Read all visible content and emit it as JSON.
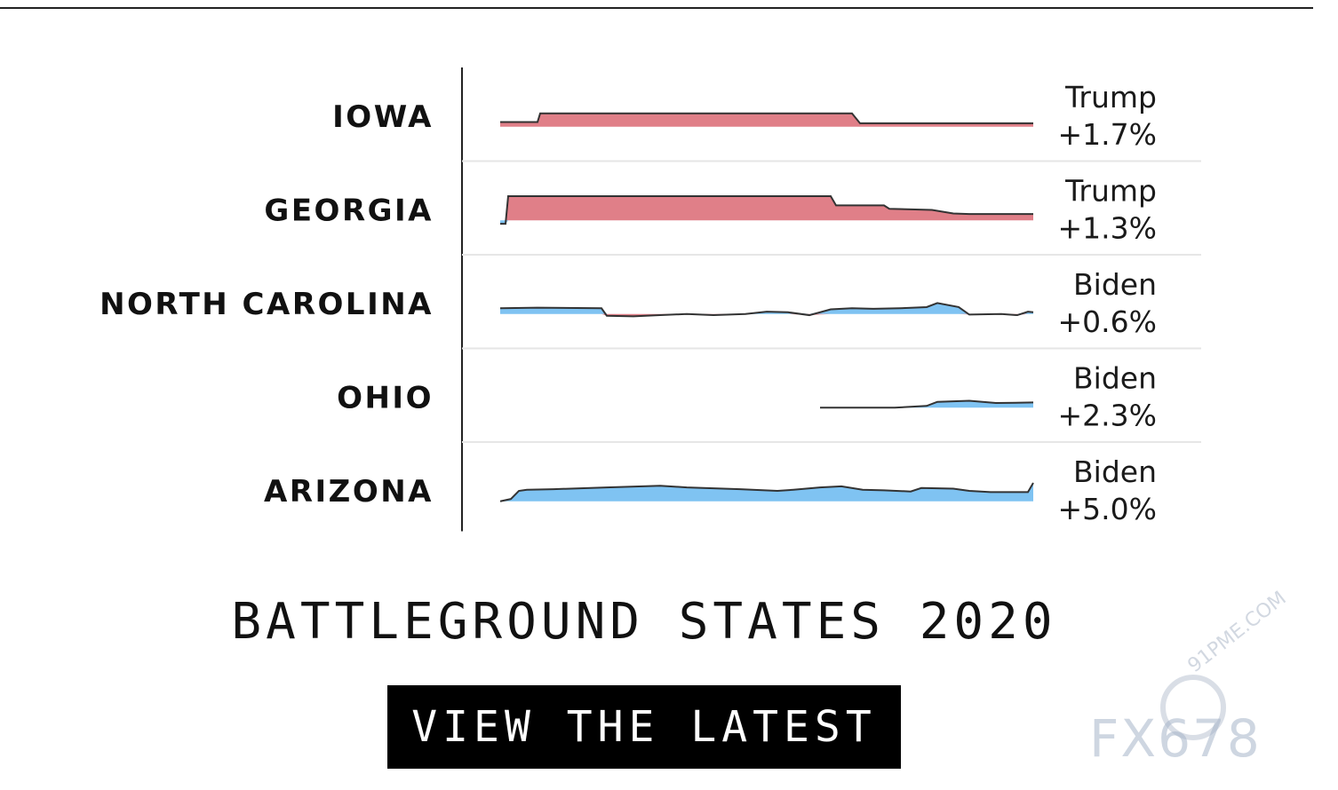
{
  "chart_data": {
    "type": "area",
    "title": "BATTLEGROUND STATES 2020",
    "colors": {
      "trump": "#e07f88",
      "biden": "#7fc3f2",
      "line": "#333333"
    },
    "series": [
      {
        "name": "IOWA",
        "result_label": "Trump",
        "result_value": "+1.7%",
        "start": 0.0,
        "points": [
          [
            0,
            0.4
          ],
          [
            0.07,
            0.4
          ],
          [
            0.075,
            1.15
          ],
          [
            0.66,
            1.15
          ],
          [
            0.675,
            0.3
          ],
          [
            1,
            0.3
          ]
        ]
      },
      {
        "name": "GEORGIA",
        "result_label": "Trump",
        "result_value": "+1.3%",
        "start": 0.0,
        "points": [
          [
            0,
            -0.3
          ],
          [
            0.01,
            -0.3
          ],
          [
            0.015,
            2.1
          ],
          [
            0.62,
            2.1
          ],
          [
            0.63,
            1.3
          ],
          [
            0.72,
            1.3
          ],
          [
            0.73,
            1.0
          ],
          [
            0.81,
            0.9
          ],
          [
            0.85,
            0.6
          ],
          [
            0.88,
            0.55
          ],
          [
            1,
            0.55
          ]
        ]
      },
      {
        "name": "NORTH CAROLINA",
        "result_label": "Biden",
        "result_value": "+0.6%",
        "start": 0.0,
        "points": [
          [
            0,
            0.5
          ],
          [
            0.07,
            0.55
          ],
          [
            0.19,
            0.5
          ],
          [
            0.2,
            -0.15
          ],
          [
            0.25,
            -0.2
          ],
          [
            0.3,
            -0.1
          ],
          [
            0.35,
            0
          ],
          [
            0.4,
            -0.1
          ],
          [
            0.46,
            0
          ],
          [
            0.5,
            0.2
          ],
          [
            0.54,
            0.15
          ],
          [
            0.58,
            -0.1
          ],
          [
            0.62,
            0.4
          ],
          [
            0.66,
            0.5
          ],
          [
            0.7,
            0.45
          ],
          [
            0.75,
            0.5
          ],
          [
            0.8,
            0.6
          ],
          [
            0.82,
            0.95
          ],
          [
            0.86,
            0.6
          ],
          [
            0.88,
            -0.05
          ],
          [
            0.94,
            0
          ],
          [
            0.97,
            -0.1
          ],
          [
            0.99,
            0.2
          ],
          [
            1,
            0.15
          ]
        ]
      },
      {
        "name": "OHIO",
        "result_label": "Biden",
        "result_value": "+2.3%",
        "start": 0.6,
        "points": [
          [
            0.6,
            0
          ],
          [
            0.74,
            0
          ],
          [
            0.8,
            0.15
          ],
          [
            0.82,
            0.5
          ],
          [
            0.88,
            0.6
          ],
          [
            0.93,
            0.4
          ],
          [
            1,
            0.45
          ]
        ]
      },
      {
        "name": "ARIZONA",
        "result_label": "Biden",
        "result_value": "+5.0%",
        "start": 0.0,
        "points": [
          [
            0,
            0
          ],
          [
            0.02,
            0.2
          ],
          [
            0.035,
            0.9
          ],
          [
            0.05,
            1.0
          ],
          [
            0.1,
            1.05
          ],
          [
            0.2,
            1.2
          ],
          [
            0.3,
            1.35
          ],
          [
            0.35,
            1.2
          ],
          [
            0.45,
            1.05
          ],
          [
            0.52,
            0.9
          ],
          [
            0.55,
            1.0
          ],
          [
            0.6,
            1.2
          ],
          [
            0.64,
            1.3
          ],
          [
            0.68,
            1.0
          ],
          [
            0.72,
            0.95
          ],
          [
            0.77,
            0.85
          ],
          [
            0.79,
            1.15
          ],
          [
            0.85,
            1.1
          ],
          [
            0.88,
            0.9
          ],
          [
            0.92,
            0.8
          ],
          [
            0.99,
            0.8
          ],
          [
            1,
            1.6
          ]
        ]
      }
    ]
  },
  "cta": {
    "label": "VIEW THE LATEST"
  },
  "watermark": {
    "text": "FX678",
    "site": "91PME.COM"
  }
}
